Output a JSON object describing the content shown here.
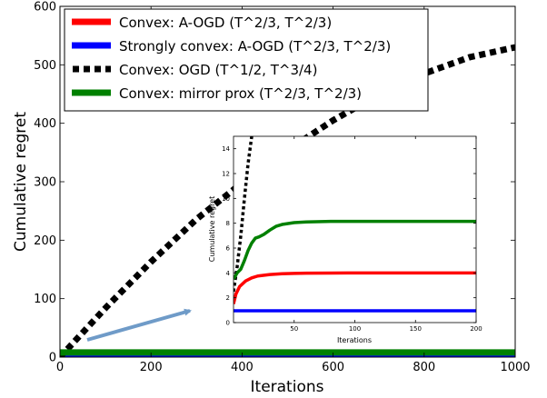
{
  "chart_data": [
    {
      "type": "line",
      "title": "",
      "xlabel": "Iterations",
      "ylabel": "Cumulative regret",
      "xlim": [
        0,
        1000
      ],
      "ylim": [
        0,
        600
      ],
      "xticks": [
        0,
        200,
        400,
        600,
        800,
        1000
      ],
      "yticks": [
        0,
        100,
        200,
        300,
        400,
        500,
        600
      ],
      "legend_position": "top-left",
      "grid": false,
      "series": [
        {
          "name": "Convex: A-OGD (T^2/3, T^2/3)",
          "color": "#ff0000",
          "style": "solid",
          "x": [
            0,
            1000
          ],
          "y": [
            4,
            4
          ]
        },
        {
          "name": "Strongly convex: A-OGD (T^2/3, T^2/3)",
          "color": "#0000ff",
          "style": "solid",
          "x": [
            0,
            1000
          ],
          "y": [
            1,
            1
          ]
        },
        {
          "name": "Convex: OGD (T^1/2, T^3/4)",
          "color": "#000000",
          "style": "dotted",
          "x": [
            0,
            100,
            200,
            300,
            400,
            500,
            600,
            700,
            800,
            900,
            1000
          ],
          "y": [
            0,
            84,
            163,
            236,
            298,
            354,
            405,
            449,
            485,
            513,
            530
          ]
        },
        {
          "name": "Convex: mirror prox (T^2/3, T^2/3)",
          "color": "#008000",
          "style": "solid",
          "x": [
            0,
            1000
          ],
          "y": [
            8,
            8
          ]
        }
      ]
    },
    {
      "type": "line",
      "title": "",
      "xlabel": "Iterations",
      "ylabel": "Cumulative regret",
      "xlim": [
        0,
        200
      ],
      "ylim": [
        0,
        15
      ],
      "xticks": [
        50,
        100,
        150,
        200
      ],
      "yticks": [
        0,
        2,
        4,
        6,
        8,
        10,
        12,
        14
      ],
      "grid": false,
      "series": [
        {
          "name": "Convex: A-OGD (T^2/3, T^2/3)",
          "color": "#ff0000",
          "style": "solid",
          "x": [
            0,
            2,
            5,
            10,
            15,
            20,
            30,
            40,
            50,
            60,
            80,
            100,
            150,
            200
          ],
          "y": [
            1.5,
            2.3,
            2.9,
            3.35,
            3.6,
            3.75,
            3.87,
            3.93,
            3.96,
            3.98,
            3.99,
            4.0,
            4.0,
            4.0
          ]
        },
        {
          "name": "Strongly convex: A-OGD (T^2/3, T^2/3)",
          "color": "#0000ff",
          "style": "solid",
          "x": [
            0,
            200
          ],
          "y": [
            0.95,
            0.95
          ]
        },
        {
          "name": "Convex: OGD (T^1/2, T^3/4)",
          "color": "#000000",
          "style": "dotted",
          "x": [
            0,
            3,
            6,
            9,
            12,
            15
          ],
          "y": [
            2.5,
            4.5,
            7,
            10,
            12.8,
            15
          ]
        },
        {
          "name": "Convex: mirror prox (T^2/3, T^2/3)",
          "color": "#008000",
          "style": "solid",
          "x": [
            0,
            3,
            6,
            9,
            12,
            15,
            18,
            21,
            25,
            30,
            35,
            40,
            50,
            60,
            80,
            100,
            150,
            200
          ],
          "y": [
            3.5,
            4.0,
            4.3,
            5.0,
            5.8,
            6.4,
            6.8,
            6.9,
            7.1,
            7.45,
            7.75,
            7.9,
            8.05,
            8.1,
            8.15,
            8.15,
            8.15,
            8.15
          ]
        }
      ]
    }
  ]
}
